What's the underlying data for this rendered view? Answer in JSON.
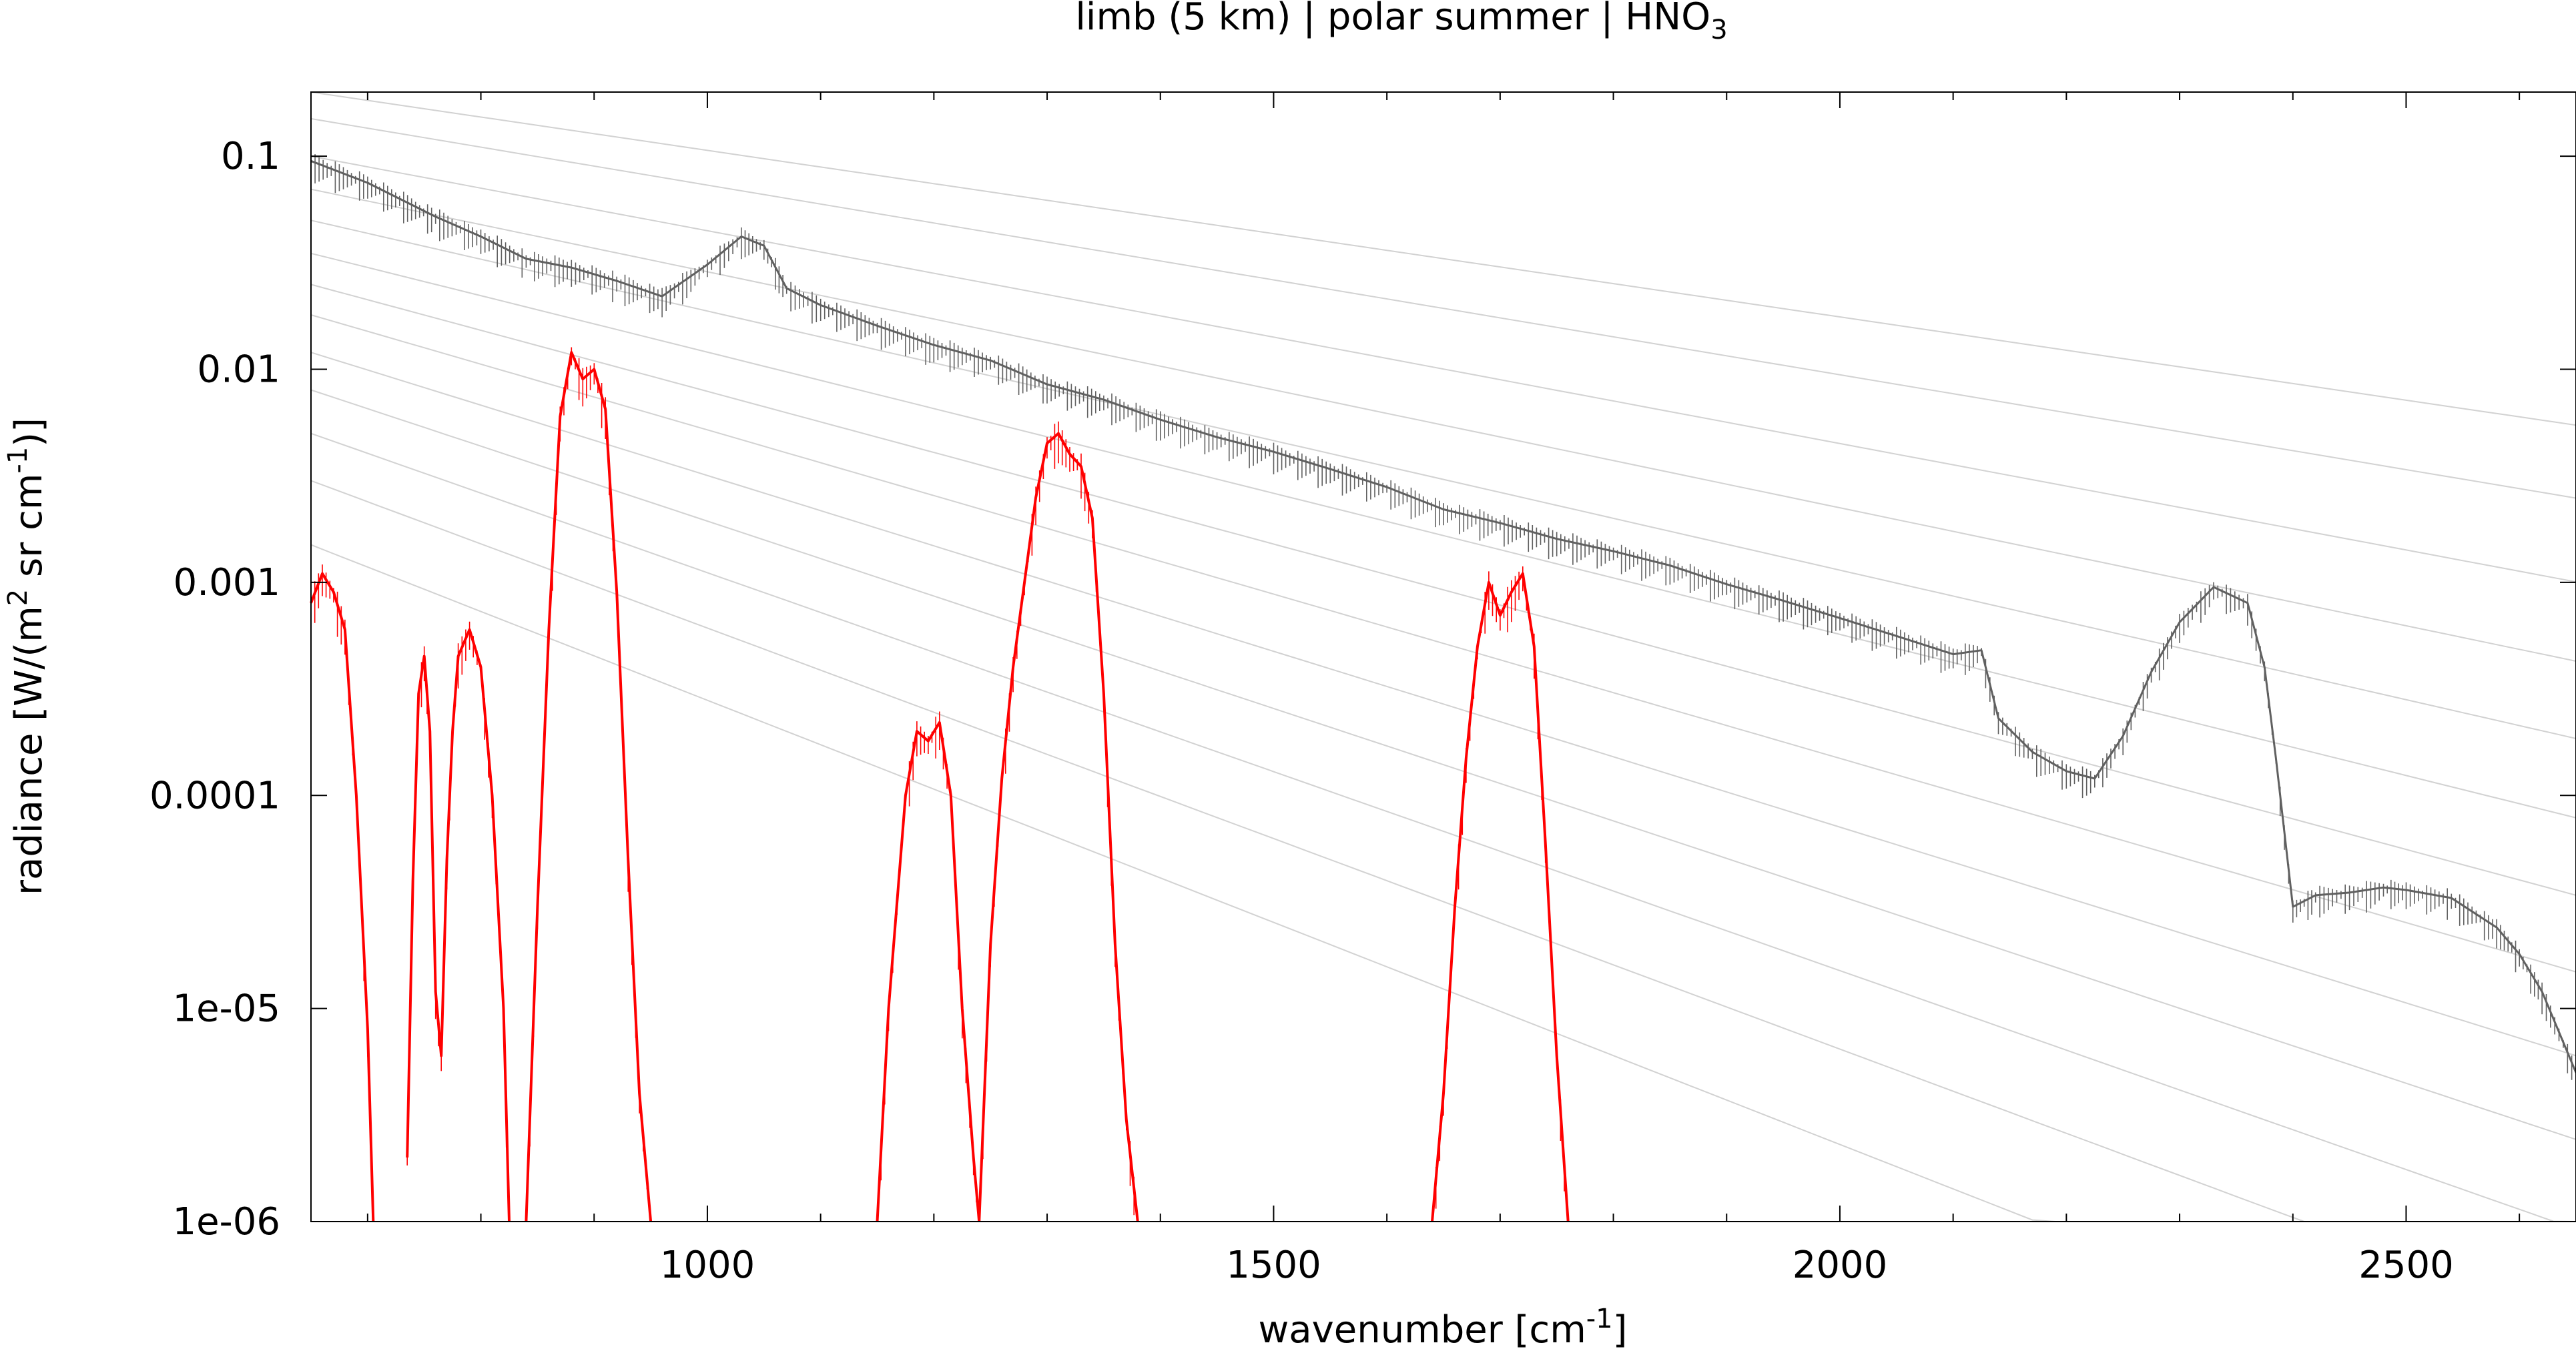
{
  "chart_data": {
    "type": "line",
    "title": {
      "main": "limb (5 km) | polar summer | HNO",
      "sub": "3"
    },
    "xlabel": {
      "main": "wavenumber [cm",
      "sup": "-1",
      "tail": "]"
    },
    "ylabel": {
      "a": "radiance [W/(m",
      "sup1": "2",
      "b": " sr cm",
      "sup2": "-1",
      "c": ")]"
    },
    "xlim": [
      650,
      2650
    ],
    "ylim": [
      1e-06,
      0.2
    ],
    "yscale": "log",
    "xticks": [
      {
        "value": 1000,
        "label": "1000"
      },
      {
        "value": 1500,
        "label": "1500"
      },
      {
        "value": 2000,
        "label": "2000"
      },
      {
        "value": 2500,
        "label": "2500"
      }
    ],
    "yticks": [
      {
        "value": 0.1,
        "label": "0.1"
      },
      {
        "value": 0.01,
        "label": "0.01"
      },
      {
        "value": 0.001,
        "label": "0.001"
      },
      {
        "value": 0.0001,
        "label": "0.0001"
      },
      {
        "value": 1e-05,
        "label": "1e-05"
      },
      {
        "value": 1e-06,
        "label": "1e-06"
      }
    ],
    "grid": false,
    "colors": {
      "total": "#606060",
      "hno3": "#ff0000",
      "reference": "#d2d2d2"
    },
    "series": [
      {
        "id": "total",
        "x": [
          650,
          700,
          760,
          800,
          840,
          880,
          920,
          960,
          1000,
          1030,
          1050,
          1070,
          1100,
          1150,
          1200,
          1250,
          1300,
          1350,
          1400,
          1450,
          1500,
          1550,
          1600,
          1650,
          1700,
          1750,
          1800,
          1850,
          1900,
          1950,
          2000,
          2050,
          2100,
          2125,
          2140,
          2170,
          2200,
          2225,
          2250,
          2275,
          2300,
          2330,
          2360,
          2375,
          2385,
          2400,
          2420,
          2450,
          2480,
          2500,
          2540,
          2580,
          2600,
          2620,
          2650
        ],
        "y": [
          0.095,
          0.075,
          0.052,
          0.042,
          0.033,
          0.03,
          0.026,
          0.022,
          0.031,
          0.042,
          0.038,
          0.024,
          0.02,
          0.016,
          0.013,
          0.011,
          0.0085,
          0.0072,
          0.0058,
          0.0048,
          0.0041,
          0.0034,
          0.0028,
          0.0022,
          0.0019,
          0.0016,
          0.0014,
          0.0012,
          0.00098,
          0.00082,
          0.00068,
          0.00056,
          0.00046,
          0.00048,
          0.00023,
          0.00016,
          0.00013,
          0.00012,
          0.00019,
          0.00038,
          0.00065,
          0.00095,
          0.0008,
          0.0004,
          0.00015,
          3e-05,
          3.4e-05,
          3.5e-05,
          3.7e-05,
          3.6e-05,
          3.3e-05,
          2.4e-05,
          1.8e-05,
          1.2e-05,
          5e-06
        ]
      },
      {
        "id": "hno3_band_1",
        "x": [
          650,
          660,
          670,
          680,
          690,
          700,
          705
        ],
        "y": [
          0.0008,
          0.0011,
          0.0009,
          0.0006,
          0.0001,
          8e-06,
          1e-06
        ]
      },
      {
        "id": "hno3_band_2",
        "x": [
          735,
          740,
          745,
          750,
          755,
          760,
          765,
          770,
          775,
          780,
          790,
          800,
          810,
          820,
          825
        ],
        "y": [
          2e-06,
          4e-05,
          0.0003,
          0.00045,
          0.0002,
          1.2e-05,
          6e-06,
          5e-05,
          0.0002,
          0.00045,
          0.0006,
          0.0004,
          0.0001,
          1e-05,
          1e-06
        ]
      },
      {
        "id": "hno3_band_3",
        "x": [
          840,
          850,
          860,
          870,
          880,
          890,
          900,
          910,
          920,
          930,
          940,
          950
        ],
        "y": [
          1e-06,
          3e-05,
          0.0006,
          0.006,
          0.012,
          0.009,
          0.01,
          0.0065,
          0.0009,
          5e-05,
          4e-06,
          1e-06
        ]
      },
      {
        "id": "hno3_band_4",
        "x": [
          1150,
          1160,
          1175,
          1185,
          1195,
          1205,
          1215,
          1225,
          1235,
          1240
        ],
        "y": [
          1e-06,
          1e-05,
          0.0001,
          0.0002,
          0.00018,
          0.00022,
          0.0001,
          1e-05,
          2e-06,
          1e-06
        ]
      },
      {
        "id": "hno3_band_5",
        "x": [
          1240,
          1250,
          1260,
          1270,
          1280,
          1290,
          1300,
          1310,
          1320,
          1330,
          1340,
          1350,
          1360,
          1370,
          1380
        ],
        "y": [
          1e-06,
          2e-05,
          0.00012,
          0.0004,
          0.001,
          0.0025,
          0.0045,
          0.005,
          0.004,
          0.0035,
          0.002,
          0.0003,
          2e-05,
          3e-06,
          1e-06
        ]
      },
      {
        "id": "hno3_band_6",
        "x": [
          1640,
          1650,
          1660,
          1670,
          1680,
          1690,
          1700,
          1710,
          1720,
          1730,
          1740,
          1750,
          1760
        ],
        "y": [
          1e-06,
          4e-06,
          3e-05,
          0.00015,
          0.0005,
          0.001,
          0.0007,
          0.0009,
          0.0011,
          0.0005,
          6e-05,
          6e-06,
          1e-06
        ]
      }
    ],
    "reference_curves": [
      0.2,
      0.15,
      0.1,
      0.07,
      0.05,
      0.035,
      0.025,
      0.018,
      0.012,
      0.008,
      0.005,
      0.003,
      0.0015
    ]
  }
}
